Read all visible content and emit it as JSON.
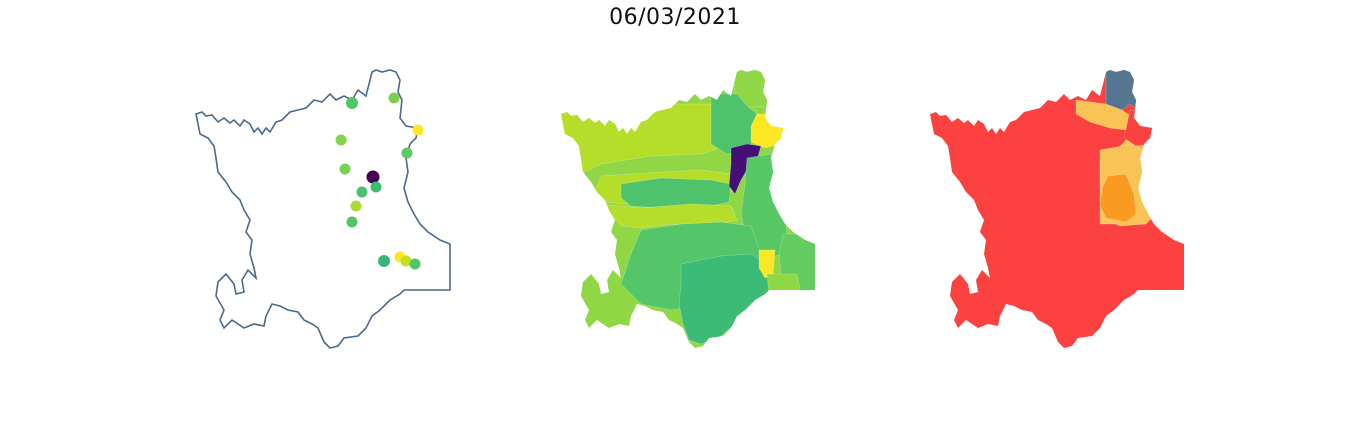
{
  "figure": {
    "title": "06/03/2021"
  },
  "panels": [
    {
      "kind": "station-points",
      "outline_color": "#4a6a8a",
      "points": [
        {
          "color": "#52c569"
        },
        {
          "color": "#7ad151"
        },
        {
          "color": "#fde725"
        },
        {
          "color": "#86d549"
        },
        {
          "color": "#5ec962"
        },
        {
          "color": "#7ad151"
        },
        {
          "color": "#440154"
        },
        {
          "color": "#3fbc73"
        },
        {
          "color": "#4ac16d"
        },
        {
          "color": "#a8db34"
        },
        {
          "color": "#52c569"
        },
        {
          "color": "#35b779"
        },
        {
          "color": "#fde725"
        },
        {
          "color": "#c2df23"
        },
        {
          "color": "#52c569"
        }
      ]
    },
    {
      "kind": "region-choropleth",
      "palette": "viridis",
      "regions": [
        {
          "id": "w1",
          "color": "#b5de2b"
        },
        {
          "id": "w2",
          "color": "#8fd744"
        },
        {
          "id": "nc",
          "color": "#4ec36b"
        },
        {
          "id": "n1",
          "color": "#8fd744"
        },
        {
          "id": "ne",
          "color": "#fde725"
        },
        {
          "id": "band1",
          "color": "#b5de2b"
        },
        {
          "id": "band2",
          "color": "#4ec36b"
        },
        {
          "id": "band3",
          "color": "#b5de2b"
        },
        {
          "id": "dark",
          "color": "#440f76"
        },
        {
          "id": "east",
          "color": "#58c765"
        },
        {
          "id": "center",
          "color": "#54c568"
        },
        {
          "id": "south",
          "color": "#3bbb75"
        },
        {
          "id": "se",
          "color": "#63cb5f"
        },
        {
          "id": "ye2",
          "color": "#fde725"
        },
        {
          "id": "lg",
          "color": "#8fd744"
        }
      ]
    },
    {
      "kind": "class-choropleth",
      "regions": [
        {
          "id": "red-main",
          "color": "#fc4141"
        },
        {
          "id": "blue-north",
          "color": "#557590"
        },
        {
          "id": "amber-1",
          "color": "#fac356"
        },
        {
          "id": "amber-2",
          "color": "#fac356"
        },
        {
          "id": "orange-core",
          "color": "#fb9a23"
        },
        {
          "id": "red-ne",
          "color": "#fc4141"
        }
      ]
    }
  ]
}
